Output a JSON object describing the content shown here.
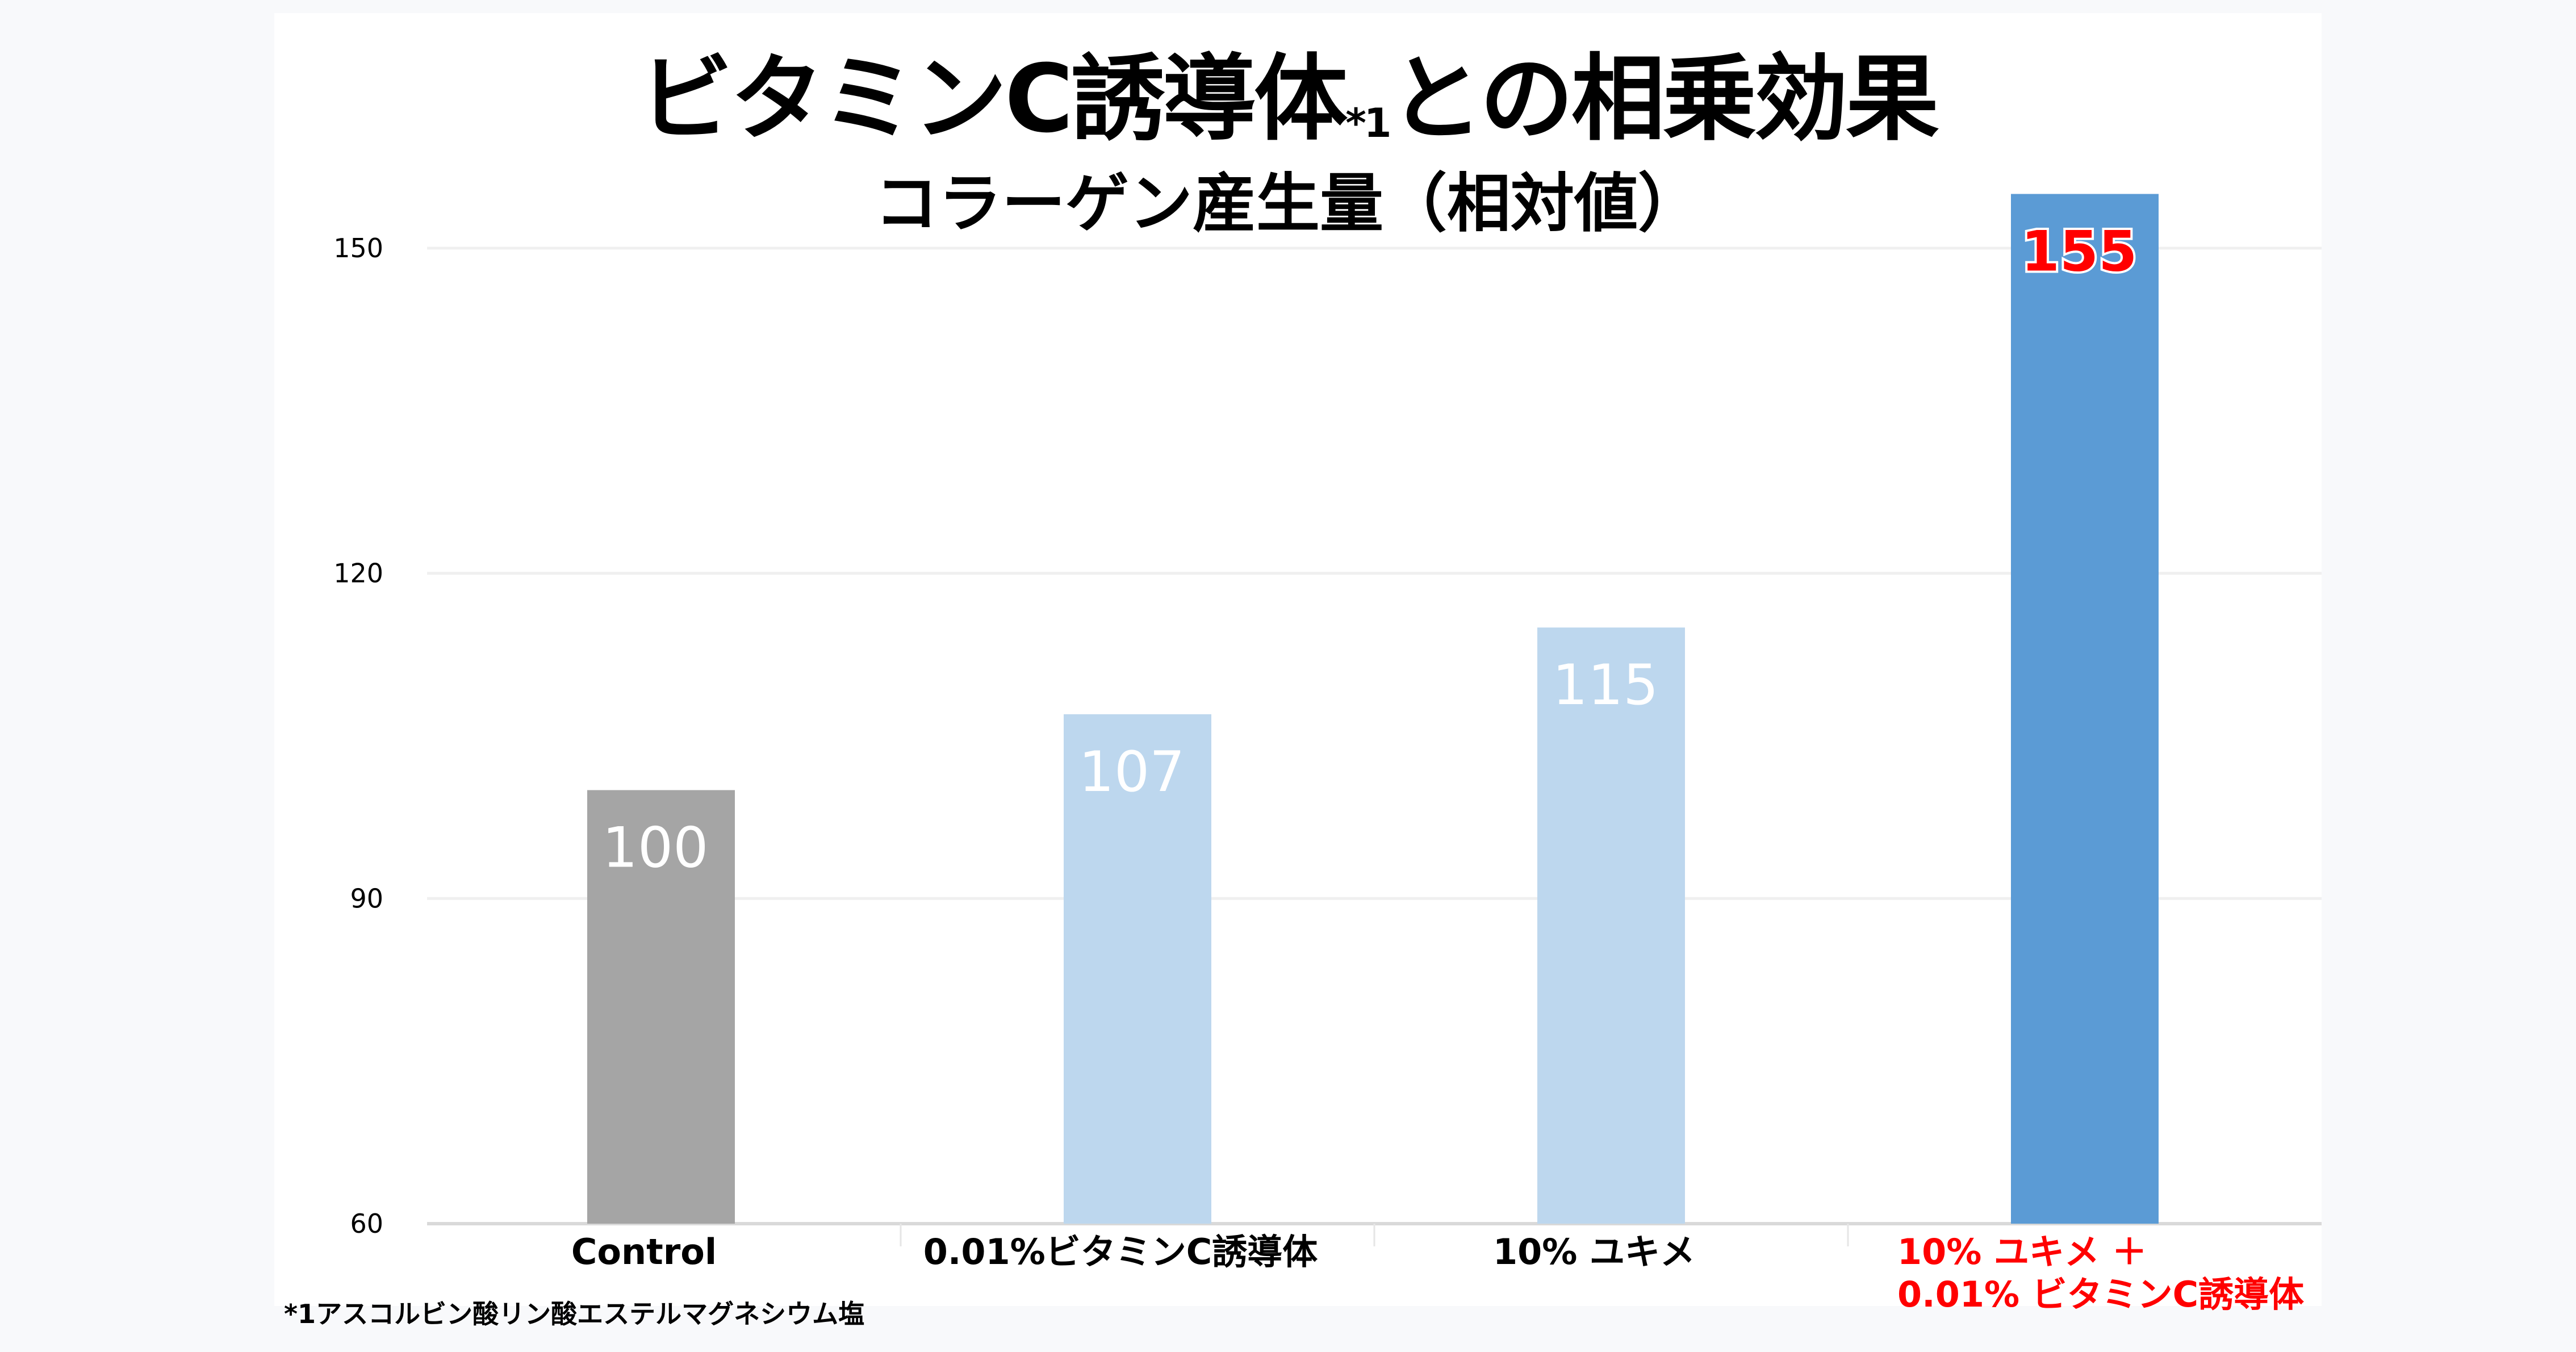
{
  "chart_data": {
    "type": "bar",
    "title": "ビタミンC誘導体",
    "title_sup": "*1",
    "title_suffix": "との相乗効果",
    "subtitle": "コラーゲン産生量（相対値）",
    "categories": [
      "Control",
      "0.01%ビタミンC誘導体",
      "10% ユキメ",
      "10% ユキメ ＋|0.01% ビタミンC誘導体"
    ],
    "values": [
      100,
      107,
      115,
      155
    ],
    "value_labels": [
      "100",
      "107",
      "115",
      "155"
    ],
    "bar_colors": [
      "#a5a5a5",
      "#bdd7ee",
      "#bdd7ee",
      "#5b9bd5"
    ],
    "label_colors": [
      "#ffffff",
      "#ffffff",
      "#ffffff",
      "#ff0000"
    ],
    "category_colors": [
      "#000000",
      "#000000",
      "#000000",
      "#ff0000"
    ],
    "yticks": [
      60,
      90,
      120,
      150
    ],
    "ylim": [
      60,
      155
    ],
    "grid": true,
    "xlabel": "",
    "ylabel": ""
  },
  "footnote": "*1アスコルビン酸リン酸エステルマグネシウム塩"
}
